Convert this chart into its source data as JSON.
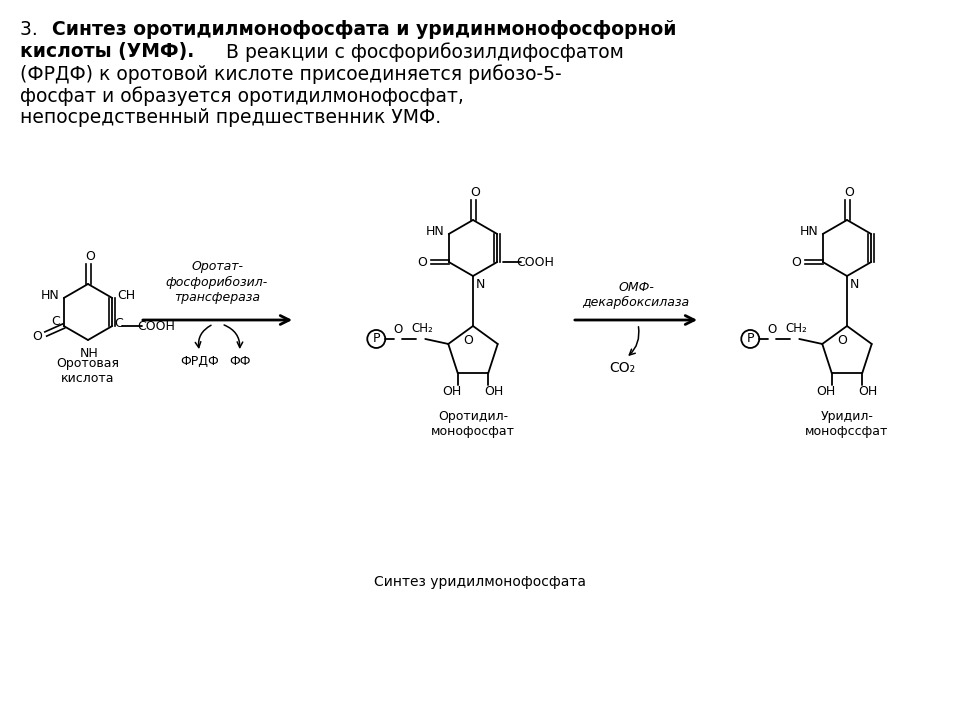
{
  "bg_color": "#ffffff",
  "text_color": "#000000",
  "enzyme1": "Оротат-\nфосфорибозил-\nтрансфераза",
  "enzyme2": "ОМФ-\nдекарбоксилаза",
  "label_orotic": "Оротовая\nкислота",
  "label_frdf": "ФРДФ",
  "label_ff": "ФФ",
  "label_otimp": "Оротидил-\nмонофосфат",
  "label_co2": "CO₂",
  "label_ump": "Уридил-\nмонофссфат",
  "caption": "Синтез уридилмонофосфата",
  "bold1": "3. ",
  "bold2": "Синтез оротидилмонофосфата и уридинмонофосфорной",
  "bold3": "кислоты (УМФ).",
  "normal4": " В реакции с фосфорибозилдифосфатом",
  "normal5": "(ФРДФ) к оротовой кислоте присоединяется рибозо-5-",
  "normal6": "фосфат и образуется оротидилмонофосфат,",
  "normal7": "непосредственный предшественник УМФ."
}
